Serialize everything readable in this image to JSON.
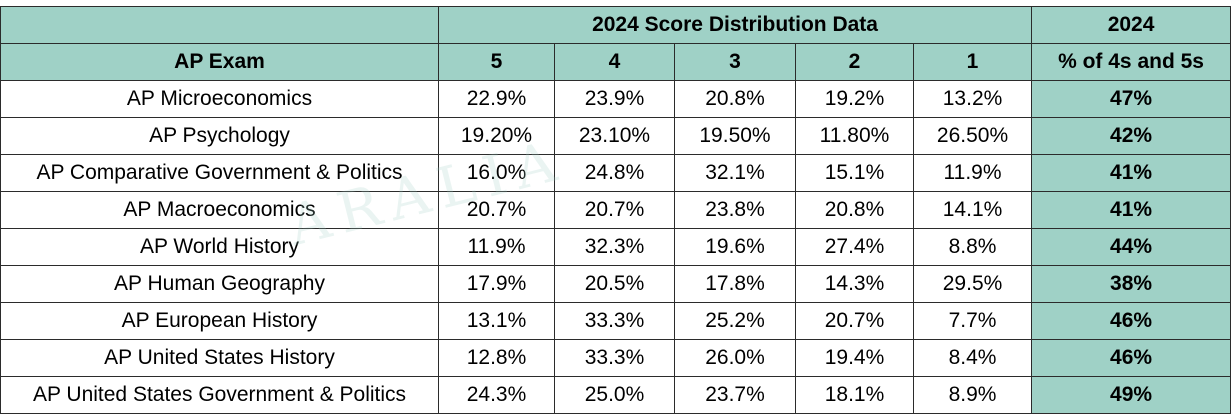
{
  "header": {
    "group_title": "2024 Score Distribution Data",
    "year_title": "2024",
    "exam_col": "AP Exam",
    "score_cols": [
      "5",
      "4",
      "3",
      "2",
      "1"
    ],
    "pct_col": "% of 4s and 5s"
  },
  "rows": [
    {
      "exam": "AP Microeconomics",
      "s5": "22.9%",
      "s4": "23.9%",
      "s3": "20.8%",
      "s2": "19.2%",
      "s1": "13.2%",
      "pct": "47%"
    },
    {
      "exam": "AP Psychology",
      "s5": "19.20%",
      "s4": "23.10%",
      "s3": "19.50%",
      "s2": "11.80%",
      "s1": "26.50%",
      "pct": "42%"
    },
    {
      "exam": "AP Comparative Government & Politics",
      "s5": "16.0%",
      "s4": "24.8%",
      "s3": "32.1%",
      "s2": "15.1%",
      "s1": "11.9%",
      "pct": "41%"
    },
    {
      "exam": "AP Macroeconomics",
      "s5": "20.7%",
      "s4": "20.7%",
      "s3": "23.8%",
      "s2": "20.8%",
      "s1": "14.1%",
      "pct": "41%"
    },
    {
      "exam": "AP World History",
      "s5": "11.9%",
      "s4": "32.3%",
      "s3": "19.6%",
      "s2": "27.4%",
      "s1": "8.8%",
      "pct": "44%"
    },
    {
      "exam": "AP Human Geography",
      "s5": "17.9%",
      "s4": "20.5%",
      "s3": "17.8%",
      "s2": "14.3%",
      "s1": "29.5%",
      "pct": "38%"
    },
    {
      "exam": "AP European History",
      "s5": "13.1%",
      "s4": "33.3%",
      "s3": "25.2%",
      "s2": "20.7%",
      "s1": "7.7%",
      "pct": "46%"
    },
    {
      "exam": "AP United States History",
      "s5": "12.8%",
      "s4": "33.3%",
      "s3": "26.0%",
      "s2": "19.4%",
      "s1": "8.4%",
      "pct": "46%"
    },
    {
      "exam": "AP United States Government & Politics",
      "s5": "24.3%",
      "s4": "25.0%",
      "s3": "23.7%",
      "s2": "18.1%",
      "s1": "8.9%",
      "pct": "49%"
    }
  ],
  "watermark": {
    "text": "ARALIA"
  },
  "colors": {
    "header_fill": "#9fd1c6",
    "border": "#2b2b2b"
  }
}
